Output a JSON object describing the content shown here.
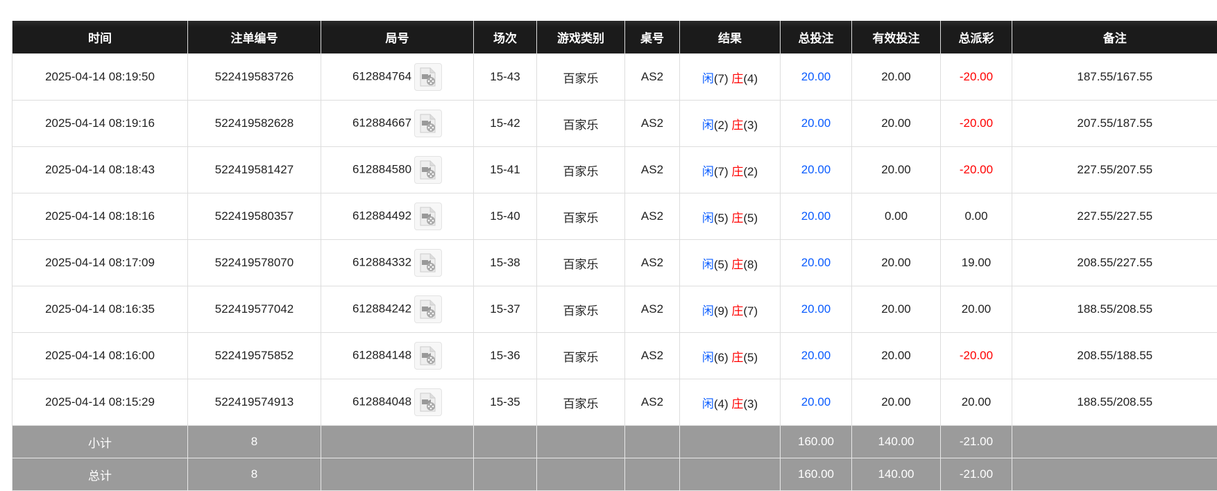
{
  "headers": [
    "时间",
    "注单编号",
    "局号",
    "场次",
    "游戏类别",
    "桌号",
    "结果",
    "总投注",
    "有效投注",
    "总派彩",
    "备注"
  ],
  "rows": [
    {
      "time": "2025-04-14 08:19:50",
      "bet_id": "522419583726",
      "round": "612884764",
      "shoe": "15-43",
      "game": "百家乐",
      "table": "AS2",
      "player_label": "闲",
      "player": "(7)",
      "banker_label": "庄",
      "banker": "(4)",
      "total": "20.00",
      "valid": "20.00",
      "payout": "-20.00",
      "payout_neg": true,
      "note": "187.55/167.55"
    },
    {
      "time": "2025-04-14 08:19:16",
      "bet_id": "522419582628",
      "round": "612884667",
      "shoe": "15-42",
      "game": "百家乐",
      "table": "AS2",
      "player_label": "闲",
      "player": "(2)",
      "banker_label": "庄",
      "banker": "(3)",
      "total": "20.00",
      "valid": "20.00",
      "payout": "-20.00",
      "payout_neg": true,
      "note": "207.55/187.55"
    },
    {
      "time": "2025-04-14 08:18:43",
      "bet_id": "522419581427",
      "round": "612884580",
      "shoe": "15-41",
      "game": "百家乐",
      "table": "AS2",
      "player_label": "闲",
      "player": "(7)",
      "banker_label": "庄",
      "banker": "(2)",
      "total": "20.00",
      "valid": "20.00",
      "payout": "-20.00",
      "payout_neg": true,
      "note": "227.55/207.55"
    },
    {
      "time": "2025-04-14 08:18:16",
      "bet_id": "522419580357",
      "round": "612884492",
      "shoe": "15-40",
      "game": "百家乐",
      "table": "AS2",
      "player_label": "闲",
      "player": "(5)",
      "banker_label": "庄",
      "banker": "(5)",
      "total": "20.00",
      "valid": "0.00",
      "payout": "0.00",
      "payout_neg": false,
      "note": "227.55/227.55"
    },
    {
      "time": "2025-04-14 08:17:09",
      "bet_id": "522419578070",
      "round": "612884332",
      "shoe": "15-38",
      "game": "百家乐",
      "table": "AS2",
      "player_label": "闲",
      "player": "(5)",
      "banker_label": "庄",
      "banker": "(8)",
      "total": "20.00",
      "valid": "20.00",
      "payout": "19.00",
      "payout_neg": false,
      "note": "208.55/227.55"
    },
    {
      "time": "2025-04-14 08:16:35",
      "bet_id": "522419577042",
      "round": "612884242",
      "shoe": "15-37",
      "game": "百家乐",
      "table": "AS2",
      "player_label": "闲",
      "player": "(9)",
      "banker_label": "庄",
      "banker": "(7)",
      "total": "20.00",
      "valid": "20.00",
      "payout": "20.00",
      "payout_neg": false,
      "note": "188.55/208.55"
    },
    {
      "time": "2025-04-14 08:16:00",
      "bet_id": "522419575852",
      "round": "612884148",
      "shoe": "15-36",
      "game": "百家乐",
      "table": "AS2",
      "player_label": "闲",
      "player": "(6)",
      "banker_label": "庄",
      "banker": "(5)",
      "total": "20.00",
      "valid": "20.00",
      "payout": "-20.00",
      "payout_neg": true,
      "note": "208.55/188.55"
    },
    {
      "time": "2025-04-14 08:15:29",
      "bet_id": "522419574913",
      "round": "612884048",
      "shoe": "15-35",
      "game": "百家乐",
      "table": "AS2",
      "player_label": "闲",
      "player": "(4)",
      "banker_label": "庄",
      "banker": "(3)",
      "total": "20.00",
      "valid": "20.00",
      "payout": "20.00",
      "payout_neg": false,
      "note": "188.55/208.55"
    }
  ],
  "summary": [
    {
      "label": "小计",
      "count": "8",
      "total": "160.00",
      "valid": "140.00",
      "payout": "-21.00"
    },
    {
      "label": "总计",
      "count": "8",
      "total": "160.00",
      "valid": "140.00",
      "payout": "-21.00"
    }
  ],
  "icon": "video-replay-icon",
  "colors": {
    "header_bg": "#1b1b1b",
    "player": "#0a5cff",
    "banker": "#ff0000",
    "negative": "#ff0000",
    "summary_bg": "#9b9b9b"
  }
}
